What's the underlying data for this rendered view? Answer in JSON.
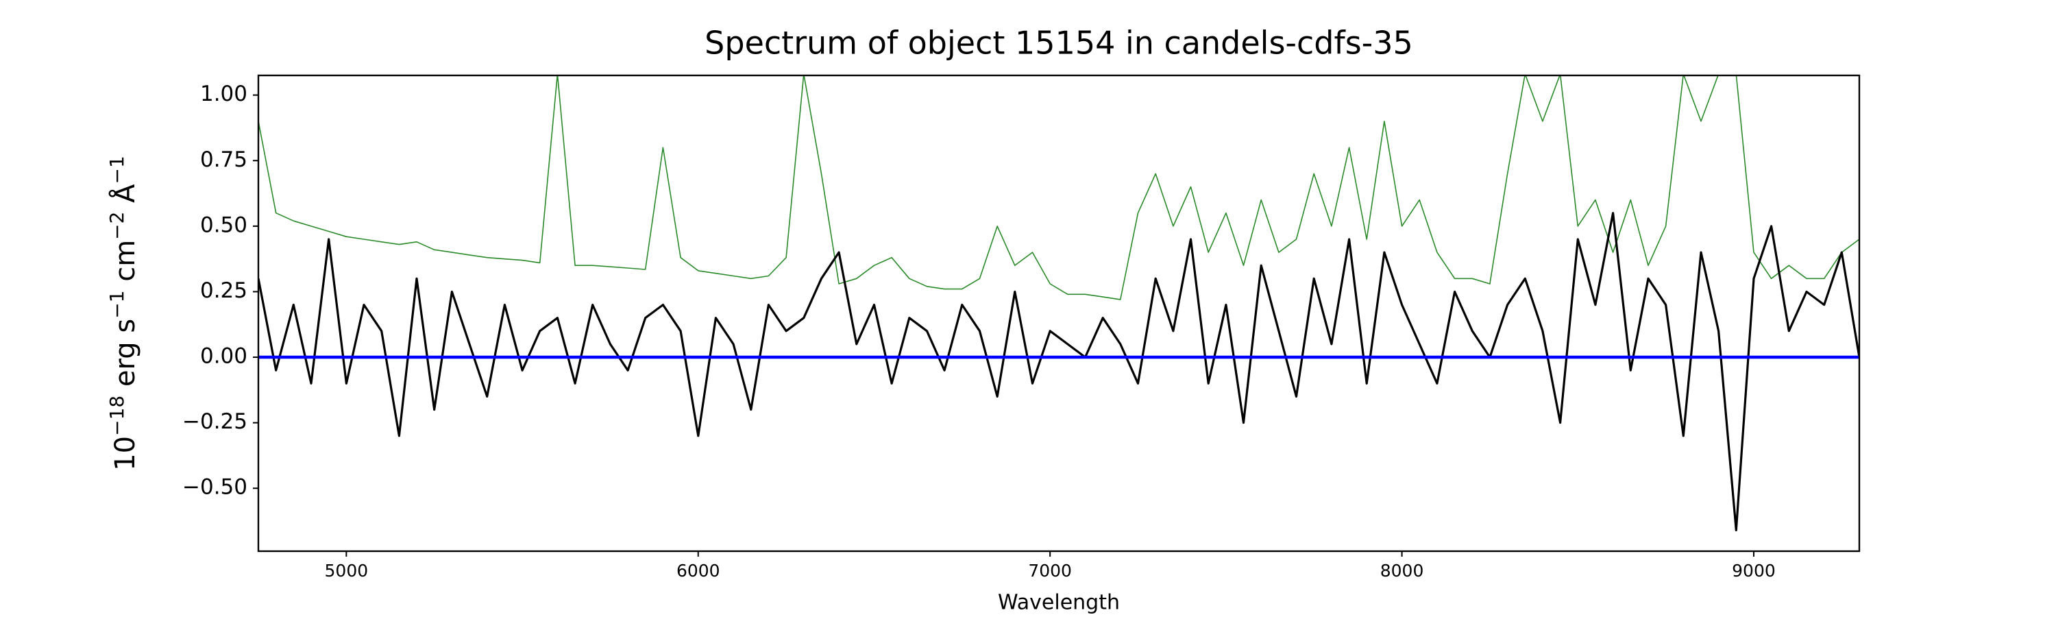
{
  "chart_data": {
    "type": "line",
    "title": "Spectrum of object 15154 in candels-cdfs-35",
    "xlabel": "Wavelength",
    "ylabel": [
      "10",
      "−18",
      " erg s",
      "−1",
      " cm",
      "−2",
      " Å",
      "−1"
    ],
    "xlim": [
      4750,
      9300
    ],
    "ylim": [
      -0.74,
      1.075
    ],
    "xticks": [
      5000,
      6000,
      7000,
      8000,
      9000
    ],
    "yticks": [
      {
        "value": -0.5,
        "label": "−0.50"
      },
      {
        "value": -0.25,
        "label": "−0.25"
      },
      {
        "value": 0,
        "label": "0.00"
      },
      {
        "value": 0.25,
        "label": "0.25"
      },
      {
        "value": 0.5,
        "label": "0.50"
      },
      {
        "value": 0.75,
        "label": "0.75"
      },
      {
        "value": 1,
        "label": "1.00"
      }
    ],
    "grid": false,
    "x": [
      4750,
      4800,
      4850,
      4900,
      4950,
      5000,
      5050,
      5100,
      5150,
      5200,
      5250,
      5300,
      5350,
      5400,
      5450,
      5500,
      5550,
      5600,
      5650,
      5700,
      5750,
      5800,
      5850,
      5900,
      5950,
      6000,
      6050,
      6100,
      6150,
      6200,
      6250,
      6300,
      6350,
      6400,
      6450,
      6500,
      6550,
      6600,
      6650,
      6700,
      6750,
      6800,
      6850,
      6900,
      6950,
      7000,
      7050,
      7100,
      7150,
      7200,
      7250,
      7300,
      7350,
      7400,
      7450,
      7500,
      7550,
      7600,
      7650,
      7700,
      7750,
      7800,
      7850,
      7900,
      7950,
      8000,
      8050,
      8100,
      8150,
      8200,
      8250,
      8300,
      8350,
      8400,
      8450,
      8500,
      8550,
      8600,
      8650,
      8700,
      8750,
      8800,
      8850,
      8900,
      8950,
      9000,
      9050,
      9100,
      9150,
      9200,
      9250,
      9300
    ],
    "series": [
      {
        "color": "#2a8a2a",
        "width": 1.6,
        "values": [
          0.9,
          0.55,
          0.52,
          0.5,
          0.48,
          0.46,
          0.45,
          0.44,
          0.43,
          0.44,
          0.41,
          0.4,
          0.39,
          0.38,
          0.375,
          0.37,
          0.36,
          1.08,
          0.35,
          0.35,
          0.345,
          0.34,
          0.335,
          0.8,
          0.38,
          0.33,
          0.32,
          0.31,
          0.3,
          0.31,
          0.38,
          1.08,
          0.7,
          0.28,
          0.3,
          0.35,
          0.38,
          0.3,
          0.27,
          0.26,
          0.26,
          0.3,
          0.5,
          0.35,
          0.4,
          0.28,
          0.24,
          0.24,
          0.23,
          0.22,
          0.55,
          0.7,
          0.5,
          0.65,
          0.4,
          0.55,
          0.35,
          0.6,
          0.4,
          0.45,
          0.7,
          0.5,
          0.8,
          0.45,
          0.9,
          0.5,
          0.6,
          0.4,
          0.3,
          0.3,
          0.28,
          0.7,
          1.08,
          0.9,
          1.08,
          0.5,
          0.6,
          0.4,
          0.6,
          0.35,
          0.5,
          1.08,
          0.9,
          1.08,
          1.08,
          0.4,
          0.3,
          0.35,
          0.3,
          0.3,
          0.4,
          0.45
        ]
      },
      {
        "color": "#000000",
        "width": 3.2,
        "values": [
          0.3,
          -0.05,
          0.2,
          -0.1,
          0.45,
          -0.1,
          0.2,
          0.1,
          -0.3,
          0.3,
          -0.2,
          0.25,
          0.05,
          -0.15,
          0.2,
          -0.05,
          0.1,
          0.15,
          -0.1,
          0.2,
          0.05,
          -0.05,
          0.15,
          0.2,
          0.1,
          -0.3,
          0.15,
          0.05,
          -0.2,
          0.2,
          0.1,
          0.15,
          0.3,
          0.4,
          0.05,
          0.2,
          -0.1,
          0.15,
          0.1,
          -0.05,
          0.2,
          0.1,
          -0.15,
          0.25,
          -0.1,
          0.1,
          0.05,
          0.0,
          0.15,
          0.05,
          -0.1,
          0.3,
          0.1,
          0.45,
          -0.1,
          0.2,
          -0.25,
          0.35,
          0.1,
          -0.15,
          0.3,
          0.05,
          0.45,
          -0.1,
          0.4,
          0.2,
          0.05,
          -0.1,
          0.25,
          0.1,
          0.0,
          0.2,
          0.3,
          0.1,
          -0.25,
          0.45,
          0.2,
          0.55,
          -0.05,
          0.3,
          0.2,
          -0.3,
          0.4,
          0.1,
          -0.66,
          0.3,
          0.5,
          0.1,
          0.25,
          0.2,
          0.4,
          0.0
        ]
      },
      {
        "color": "#0000ff",
        "width": 4.5,
        "x": [
          4750,
          9300
        ],
        "values": [
          0,
          0
        ]
      }
    ]
  }
}
